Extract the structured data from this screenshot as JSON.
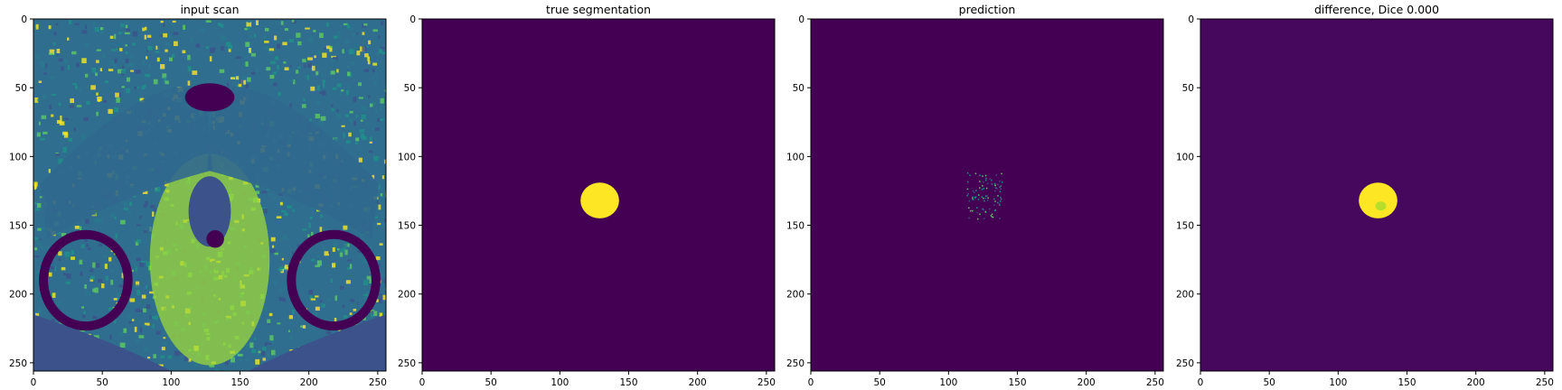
{
  "figure": {
    "background": "#ffffff"
  },
  "colormap": {
    "name": "viridis",
    "dark": "#440154",
    "purple": "#46085c",
    "teal": "#21918c",
    "green": "#5ec962",
    "yellow": "#fde725"
  },
  "chart_data": [
    {
      "type": "heatmap",
      "title": "input scan",
      "xlabel": "",
      "ylabel": "",
      "xlim": [
        0,
        256
      ],
      "ylim": [
        256,
        0
      ],
      "x_ticks": [
        0,
        50,
        100,
        150,
        200,
        250
      ],
      "y_ticks": [
        0,
        50,
        100,
        150,
        200,
        250
      ],
      "content": "mri"
    },
    {
      "type": "heatmap",
      "title": "true segmentation",
      "xlabel": "",
      "ylabel": "",
      "xlim": [
        0,
        256
      ],
      "ylim": [
        256,
        0
      ],
      "x_ticks": [
        0,
        50,
        100,
        150,
        200,
        250
      ],
      "y_ticks": [
        0,
        50,
        100,
        150,
        200,
        250
      ],
      "content": "mask",
      "blob_center": [
        129,
        132
      ],
      "blob_radius": [
        14,
        13
      ]
    },
    {
      "type": "heatmap",
      "title": "prediction",
      "xlabel": "",
      "ylabel": "",
      "xlim": [
        0,
        256
      ],
      "ylim": [
        256,
        0
      ],
      "x_ticks": [
        0,
        50,
        100,
        150,
        200,
        250
      ],
      "y_ticks": [
        0,
        50,
        100,
        150,
        200,
        250
      ],
      "content": "speckle",
      "blob_center": [
        126,
        128
      ]
    },
    {
      "type": "heatmap",
      "title": "difference, Dice 0.000",
      "xlabel": "",
      "ylabel": "",
      "xlim": [
        0,
        256
      ],
      "ylim": [
        256,
        0
      ],
      "x_ticks": [
        0,
        50,
        100,
        150,
        200,
        250
      ],
      "y_ticks": [
        0,
        50,
        100,
        150,
        200,
        250
      ],
      "content": "mask-diff",
      "blob_center": [
        129,
        132
      ],
      "blob_radius": [
        14,
        13
      ]
    }
  ]
}
